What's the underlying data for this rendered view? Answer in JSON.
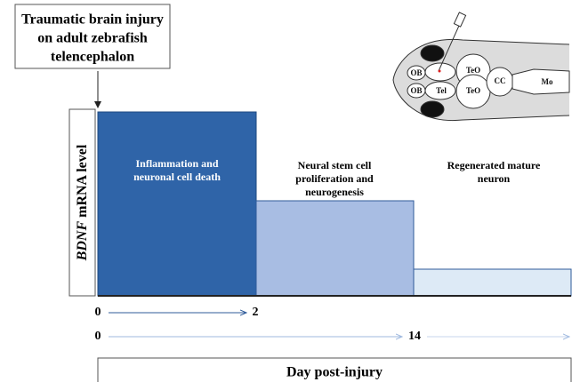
{
  "injury_box": {
    "lines": [
      "Traumatic brain injury",
      "on adult zebrafish",
      "telencephalon"
    ]
  },
  "y_label": {
    "gene": "BDNF",
    "rest": "mRNA level"
  },
  "phases": [
    {
      "lines": [
        "Inflammation and",
        "neuronal cell death"
      ]
    },
    {
      "lines": [
        "Neural stem cell",
        "proliferation and",
        "neurogenesis"
      ]
    },
    {
      "lines": [
        "Regenerated mature",
        "neuron"
      ]
    }
  ],
  "timeline": {
    "row1": [
      "0",
      "2"
    ],
    "row2": [
      "0",
      "14"
    ]
  },
  "x_label": "Day post-injury",
  "brain_labels": [
    "OB",
    "OB",
    "Tel",
    "TeO",
    "TeO",
    "CC",
    "Mo"
  ]
}
